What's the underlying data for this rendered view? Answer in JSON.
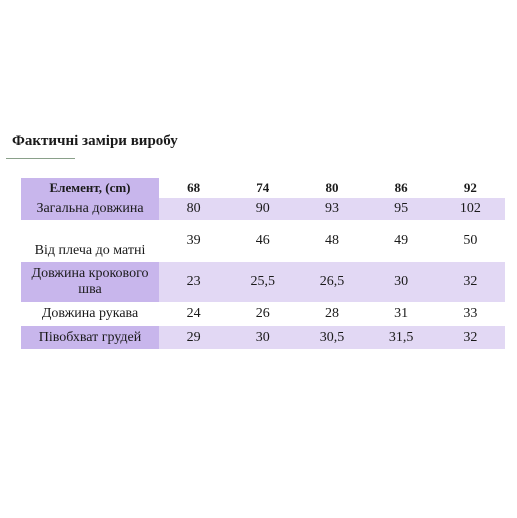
{
  "heading": "Фактичні заміри виробу",
  "table": {
    "header_label": "Елемент, (cm)",
    "sizes": [
      "68",
      "74",
      "80",
      "86",
      "92"
    ],
    "rows": [
      {
        "label": "Загальна довжина",
        "values": [
          "80",
          "90",
          "93",
          "95",
          "102"
        ]
      },
      {
        "label": "Від плеча до матні",
        "values": [
          "39",
          "46",
          "48",
          "49",
          "50"
        ]
      },
      {
        "label": "Довжина крокового шва",
        "values": [
          "23",
          "25,5",
          "26,5",
          "30",
          "32"
        ]
      },
      {
        "label": "Довжина рукава",
        "values": [
          "24",
          "26",
          "28",
          "31",
          "33"
        ]
      },
      {
        "label": "Півобхват грудей",
        "values": [
          "29",
          "30",
          "30,5",
          "31,5",
          "32"
        ]
      }
    ]
  },
  "colors": {
    "label_cell": "#c8b6ec",
    "row_tint": "#e2d8f4",
    "heading_rule": "#8aa08a"
  }
}
